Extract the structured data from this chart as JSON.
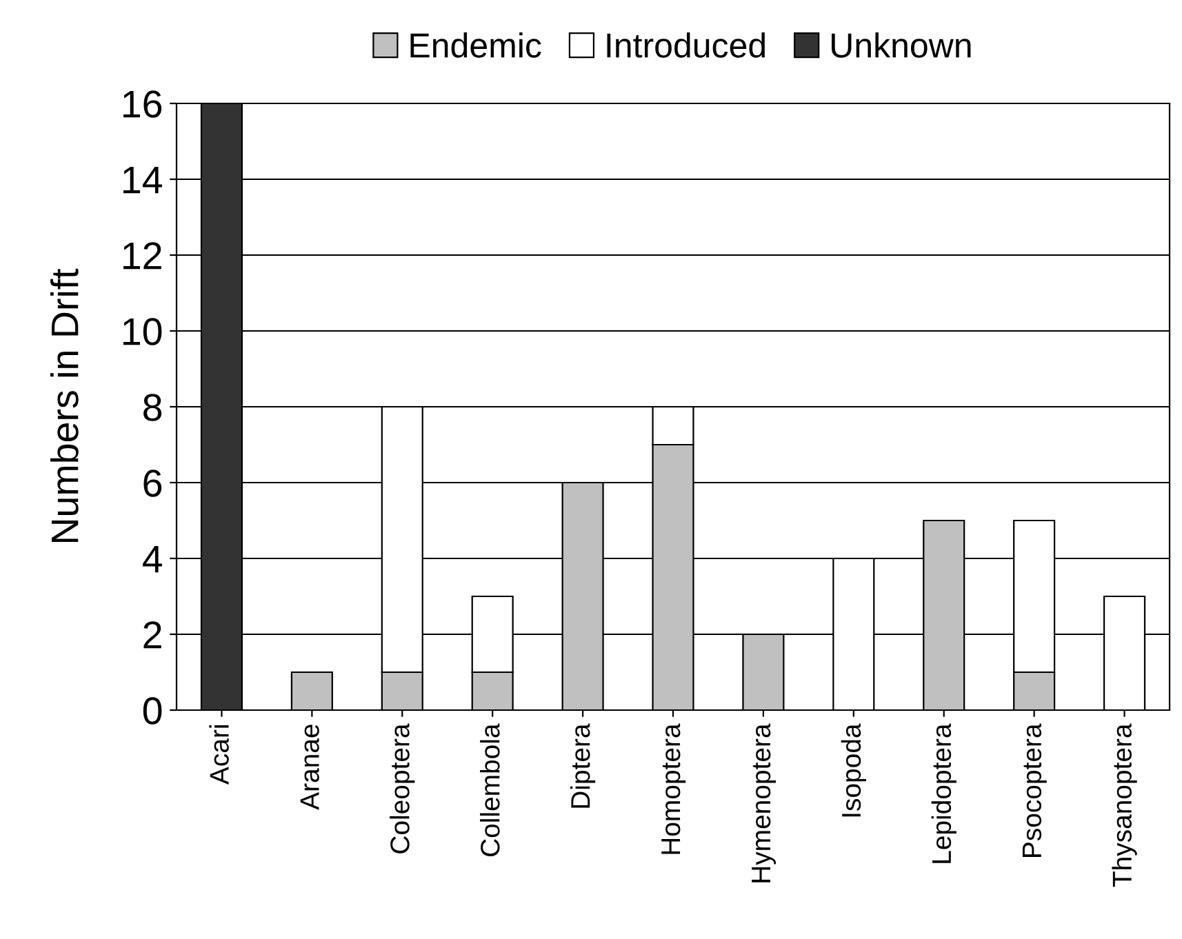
{
  "chart_data": {
    "type": "bar",
    "stacked": true,
    "ylabel": "Numbers in Drift",
    "categories": [
      "Acari",
      "Aranae",
      "Coleoptera",
      "Collembola",
      "Diptera",
      "Homoptera",
      "Hymenoptera",
      "Isopoda",
      "Lepidoptera",
      "Psocoptera",
      "Thysanoptera"
    ],
    "series": [
      {
        "name": "Endemic",
        "color": "#c0c0c0",
        "values": [
          null,
          1,
          1,
          1,
          6,
          7,
          2,
          null,
          5,
          1,
          null
        ]
      },
      {
        "name": "Introduced",
        "color": "#ffffff",
        "values": [
          null,
          null,
          7,
          2,
          null,
          1,
          null,
          4,
          null,
          4,
          3
        ]
      },
      {
        "name": "Unknown",
        "color": "#333333",
        "values": [
          16,
          null,
          null,
          null,
          null,
          null,
          null,
          null,
          null,
          null,
          null
        ]
      }
    ],
    "ylim": [
      0,
      16
    ],
    "yticks": [
      0,
      2,
      4,
      6,
      8,
      10,
      12,
      14,
      16
    ],
    "grid": "y",
    "legend": "top"
  }
}
